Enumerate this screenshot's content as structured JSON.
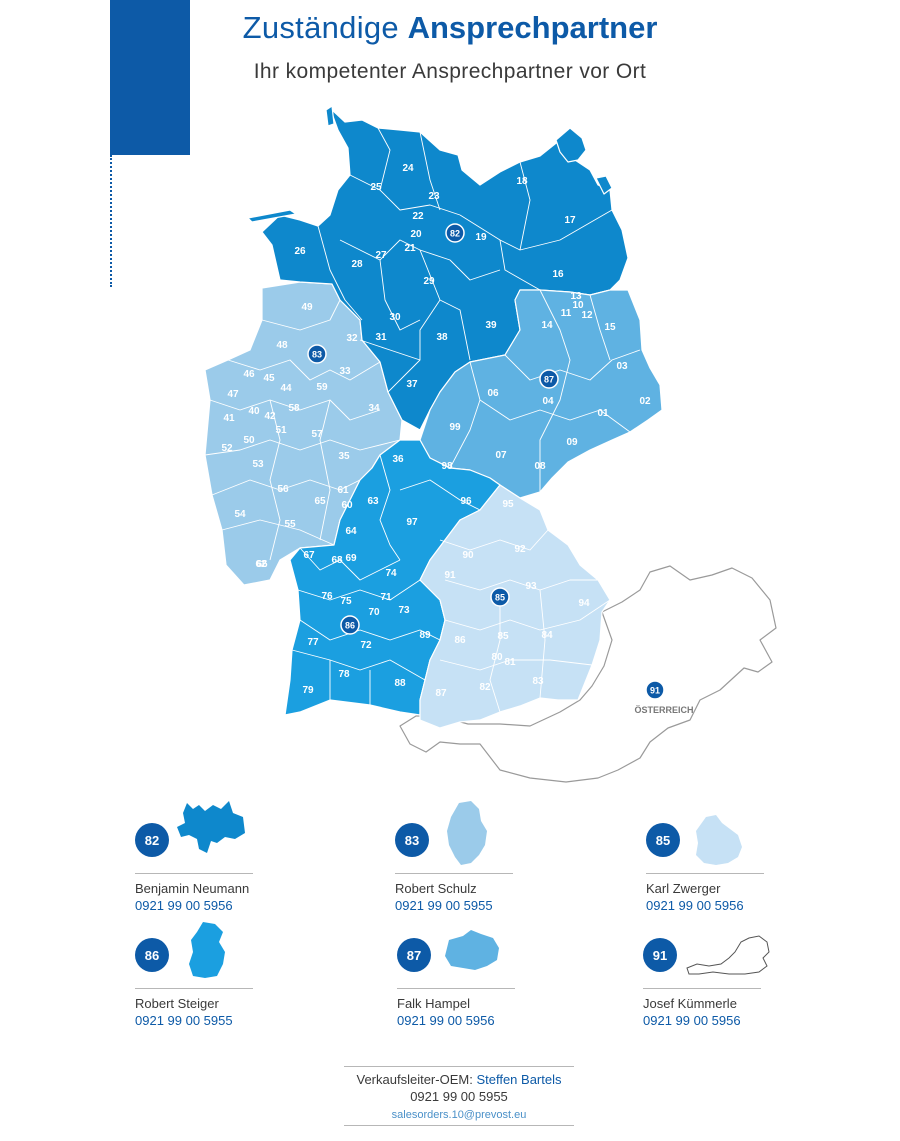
{
  "header": {
    "title_light": "Zuständige",
    "title_bold": "Ansprechpartner",
    "subtitle": "Ihr kompetenter Ansprechpartner vor Ort"
  },
  "colors": {
    "accent": "#0d5aa7",
    "region_82": "#0e88cc",
    "region_83": "#9bcbea",
    "region_85": "#c6e1f5",
    "region_86": "#1b9fe0",
    "region_87": "#5fb2e2",
    "austria_outline": "#9a9a9a"
  },
  "map": {
    "country_label": "ÖSTERREICH",
    "badges": [
      "82",
      "83",
      "87",
      "85",
      "86",
      "91"
    ],
    "regions": [
      "24",
      "23",
      "25",
      "22",
      "20",
      "21",
      "82",
      "19",
      "18",
      "17",
      "26",
      "27",
      "28",
      "29",
      "16",
      "13",
      "10",
      "11",
      "12",
      "14",
      "15",
      "49",
      "48",
      "83",
      "32",
      "33",
      "30",
      "31",
      "38",
      "39",
      "46",
      "45",
      "44",
      "47",
      "40",
      "42",
      "41",
      "51",
      "50",
      "52",
      "59",
      "58",
      "57",
      "34",
      "37",
      "06",
      "87",
      "03",
      "04",
      "01",
      "02",
      "99",
      "09",
      "07",
      "08",
      "98",
      "36",
      "35",
      "53",
      "56",
      "61",
      "60",
      "65",
      "54",
      "55",
      "63",
      "64",
      "62",
      "96",
      "95",
      "97",
      "90",
      "92",
      "91",
      "66",
      "67",
      "68",
      "69",
      "74",
      "85",
      "93",
      "94",
      "75",
      "71",
      "70",
      "76",
      "73",
      "86",
      "77",
      "72",
      "89",
      "84",
      "80",
      "81",
      "78",
      "79",
      "88",
      "87",
      "82",
      "83"
    ]
  },
  "contacts": [
    {
      "region": "82",
      "name": "Benjamin Neumann",
      "phone": "0921 99 00 5956",
      "thumb": "region-82-shape"
    },
    {
      "region": "83",
      "name": "Robert Schulz",
      "phone": "0921 99 00 5955",
      "thumb": "region-83-shape"
    },
    {
      "region": "85",
      "name": "Karl Zwerger",
      "phone": "0921 99 00 5956",
      "thumb": "region-85-shape"
    },
    {
      "region": "86",
      "name": "Robert Steiger",
      "phone": "0921 99 00 5955",
      "thumb": "region-86-shape"
    },
    {
      "region": "87",
      "name": "Falk Hampel",
      "phone": "0921 99 00 5956",
      "thumb": "region-87-shape"
    },
    {
      "region": "91",
      "name": "Josef Kümmerle",
      "phone": "0921 99 00 5956",
      "thumb": "austria-outline"
    }
  ],
  "footer": {
    "role": "Verkaufsleiter-OEM:",
    "person": "Steffen Bartels",
    "phone": "0921 99 00 5955",
    "email": "salesorders.10@prevost.eu"
  }
}
